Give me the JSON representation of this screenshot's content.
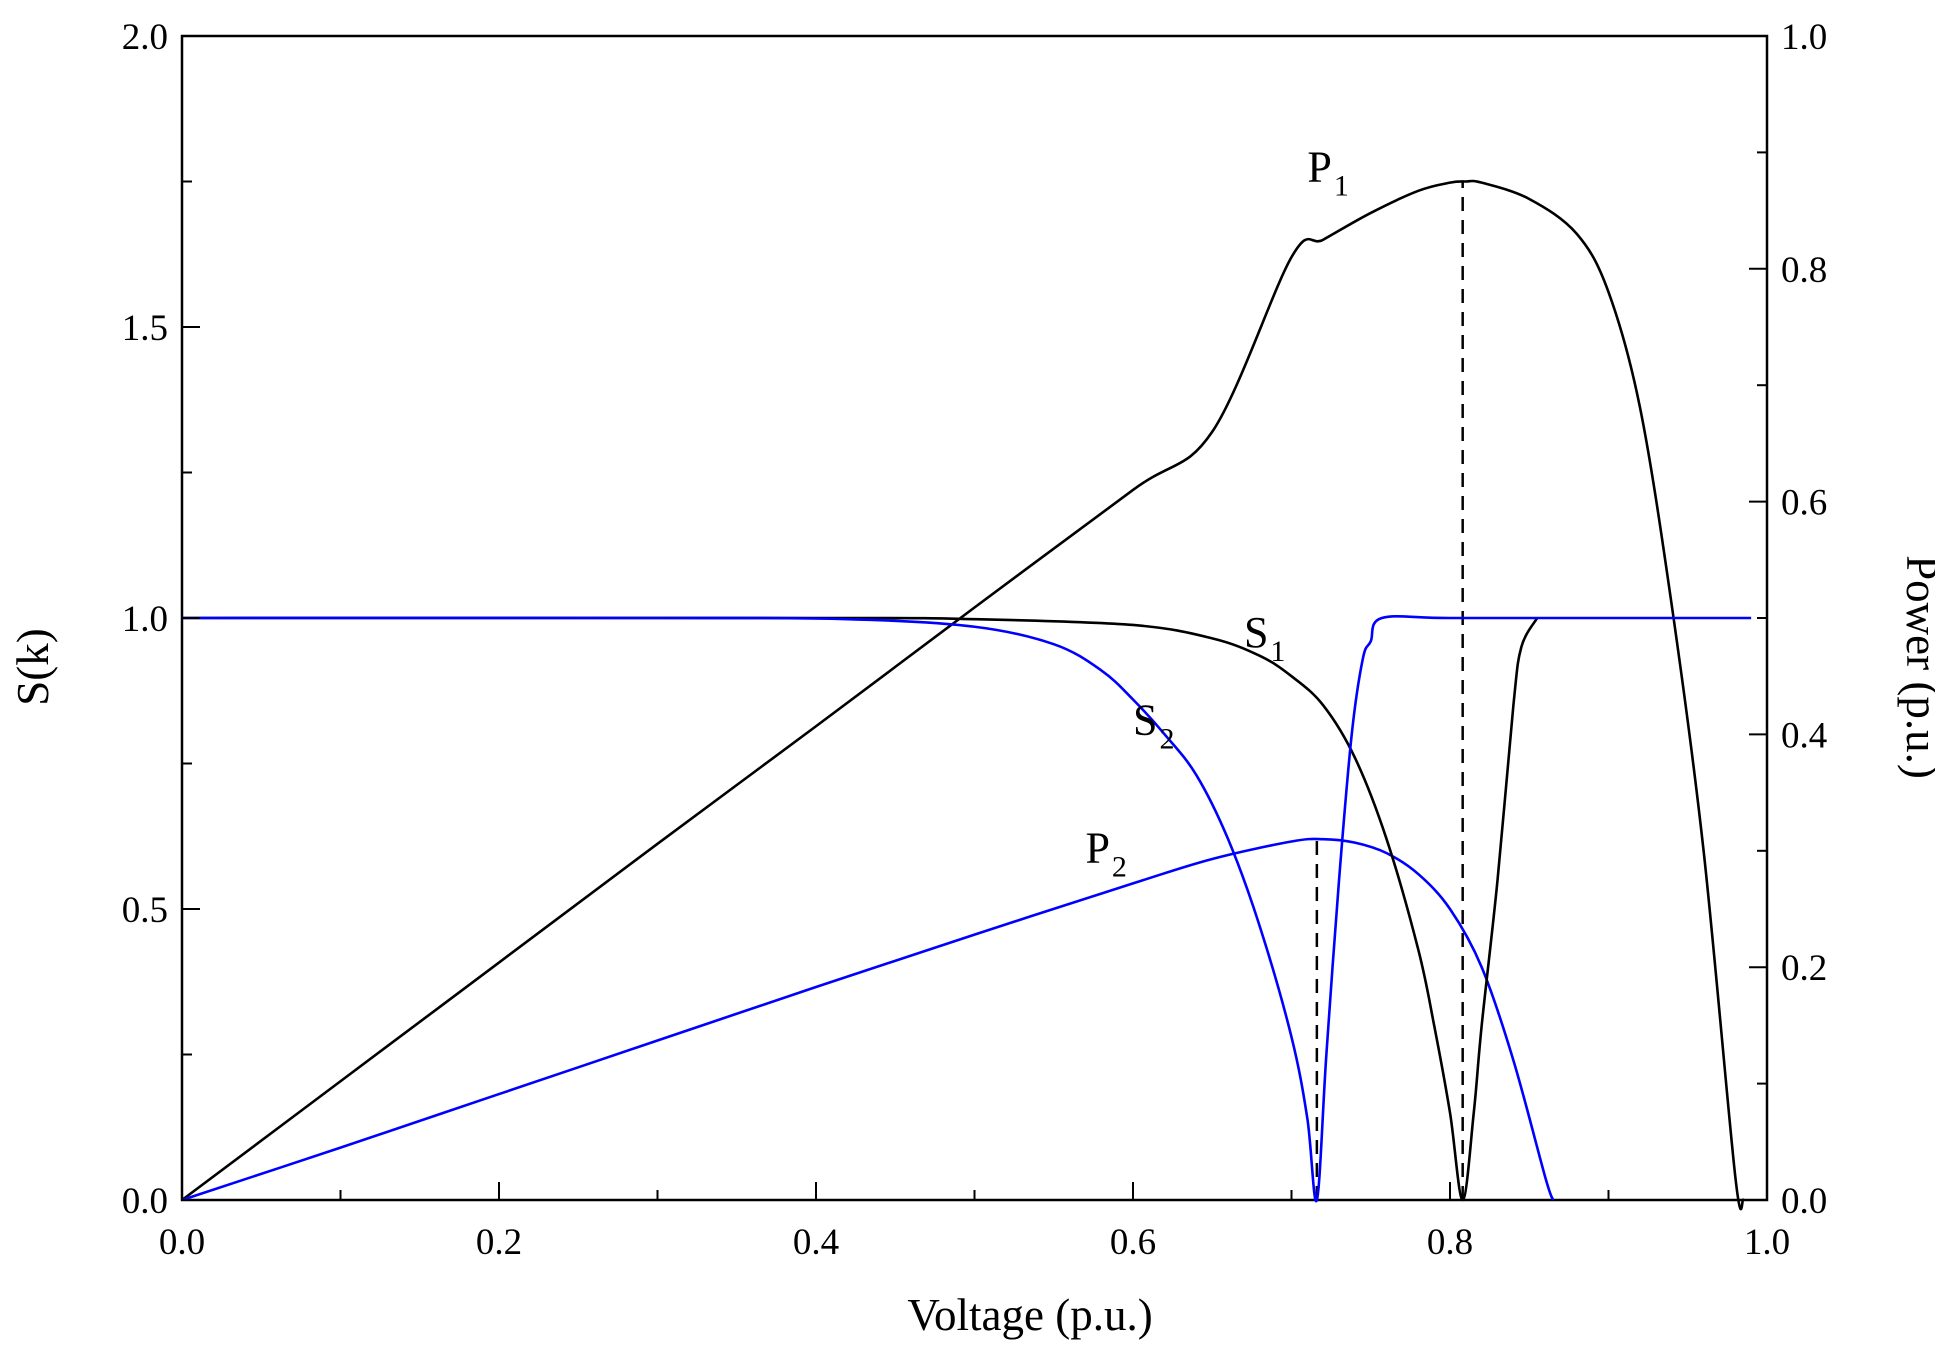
{
  "chart_data": {
    "type": "line",
    "title": "",
    "xlabel": "Voltage (p.u.)",
    "ylabel": "S(k)",
    "y2label": "Power (p.u.)",
    "xlim": [
      0,
      1.0
    ],
    "ylim": [
      0,
      2.0
    ],
    "y2lim": [
      0,
      1.0
    ],
    "xticks": [
      "0.0",
      "0.2",
      "0.4",
      "0.6",
      "0.8",
      "1.0"
    ],
    "yticks": [
      "0.0",
      "0.5",
      "1.0",
      "1.5",
      "2.0"
    ],
    "y2ticks": [
      "0.0",
      "0.2",
      "0.4",
      "0.6",
      "0.8",
      "1.0"
    ],
    "grid": false,
    "series": [
      {
        "name": "P1",
        "axis": "right",
        "color": "#000000",
        "points": [
          [
            0,
            0
          ],
          [
            0.1,
            0.102
          ],
          [
            0.2,
            0.204
          ],
          [
            0.3,
            0.306
          ],
          [
            0.4,
            0.407
          ],
          [
            0.5,
            0.509
          ],
          [
            0.6,
            0.61
          ],
          [
            0.65,
            0.66
          ],
          [
            0.7,
            0.81
          ],
          [
            0.72,
            0.825
          ],
          [
            0.75,
            0.848
          ],
          [
            0.78,
            0.867
          ],
          [
            0.8,
            0.874
          ],
          [
            0.81,
            0.875
          ],
          [
            0.82,
            0.874
          ],
          [
            0.85,
            0.86
          ],
          [
            0.88,
            0.83
          ],
          [
            0.9,
            0.78
          ],
          [
            0.92,
            0.68
          ],
          [
            0.94,
            0.51
          ],
          [
            0.96,
            0.3
          ],
          [
            0.98,
            0.02
          ],
          [
            0.985,
            0
          ]
        ]
      },
      {
        "name": "P2",
        "axis": "right",
        "color": "#0000ff",
        "points": [
          [
            0,
            0
          ],
          [
            0.1,
            0.045
          ],
          [
            0.2,
            0.091
          ],
          [
            0.3,
            0.137
          ],
          [
            0.4,
            0.183
          ],
          [
            0.5,
            0.228
          ],
          [
            0.6,
            0.272
          ],
          [
            0.65,
            0.293
          ],
          [
            0.7,
            0.308
          ],
          [
            0.72,
            0.31
          ],
          [
            0.74,
            0.307
          ],
          [
            0.76,
            0.298
          ],
          [
            0.78,
            0.28
          ],
          [
            0.8,
            0.25
          ],
          [
            0.82,
            0.2
          ],
          [
            0.84,
            0.12
          ],
          [
            0.86,
            0.02
          ],
          [
            0.865,
            0
          ]
        ]
      },
      {
        "name": "S1",
        "axis": "left",
        "color": "#000000",
        "points": [
          [
            0,
            1.0
          ],
          [
            0.4,
            1.0
          ],
          [
            0.5,
            0.998
          ],
          [
            0.6,
            0.988
          ],
          [
            0.65,
            0.965
          ],
          [
            0.68,
            0.935
          ],
          [
            0.7,
            0.9
          ],
          [
            0.72,
            0.85
          ],
          [
            0.74,
            0.76
          ],
          [
            0.76,
            0.62
          ],
          [
            0.78,
            0.43
          ],
          [
            0.79,
            0.3
          ],
          [
            0.8,
            0.15
          ],
          [
            0.808,
            0.0
          ],
          [
            0.815,
            0.15
          ],
          [
            0.82,
            0.3
          ],
          [
            0.83,
            0.55
          ],
          [
            0.84,
            0.85
          ],
          [
            0.845,
            0.95
          ],
          [
            0.855,
            1.0
          ]
        ]
      },
      {
        "name": "S2",
        "axis": "left",
        "color": "#0000ff",
        "points": [
          [
            0,
            1.0
          ],
          [
            0.3,
            1.0
          ],
          [
            0.42,
            0.998
          ],
          [
            0.5,
            0.985
          ],
          [
            0.55,
            0.955
          ],
          [
            0.58,
            0.91
          ],
          [
            0.6,
            0.86
          ],
          [
            0.62,
            0.8
          ],
          [
            0.64,
            0.73
          ],
          [
            0.66,
            0.62
          ],
          [
            0.68,
            0.47
          ],
          [
            0.7,
            0.28
          ],
          [
            0.71,
            0.14
          ],
          [
            0.716,
            0.0
          ],
          [
            0.722,
            0.25
          ],
          [
            0.73,
            0.55
          ],
          [
            0.738,
            0.8
          ],
          [
            0.745,
            0.93
          ],
          [
            0.75,
            0.96
          ],
          [
            0.757,
            1.0
          ],
          [
            0.8,
            1.0
          ],
          [
            0.9,
            1.0
          ],
          [
            0.99,
            1.0
          ]
        ]
      }
    ],
    "annotations": [
      {
        "type": "vline",
        "x": 0.808,
        "y_top_power": 0.875,
        "style": "dashed"
      },
      {
        "type": "vline",
        "x": 0.716,
        "y_top_power": 0.31,
        "style": "dashed"
      }
    ],
    "labels": [
      {
        "main": "P",
        "sub": "1",
        "x": 0.71,
        "y_power": 0.875
      },
      {
        "main": "P",
        "sub": "2",
        "x": 0.57,
        "y_power": 0.29
      },
      {
        "main": "S",
        "sub": "1",
        "x": 0.67,
        "y_s": 0.95
      },
      {
        "main": "S",
        "sub": "2",
        "x": 0.6,
        "y_s": 0.8
      }
    ]
  }
}
